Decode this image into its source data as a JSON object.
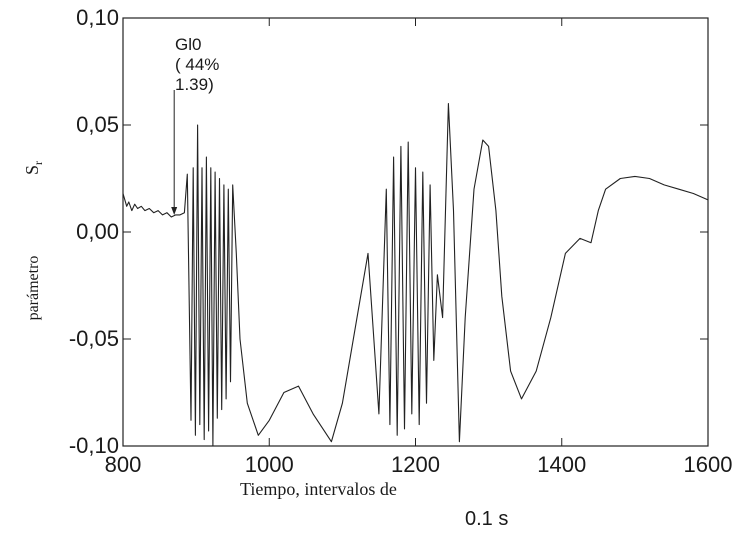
{
  "chart_data": {
    "type": "line",
    "title": "",
    "xlabel": "Tiempo, intervalos de",
    "xlabel_unit": "0.1 s",
    "ylabel": "parámetro",
    "ylabel_symbol": "S",
    "ylabel_symbol_subscript": "r",
    "xlim": [
      800,
      1600
    ],
    "ylim": [
      -0.1,
      0.1
    ],
    "x_ticks": [
      800,
      1000,
      1200,
      1400,
      1600
    ],
    "x_tick_labels": [
      "800",
      "1000",
      "1200",
      "1400",
      "1600"
    ],
    "y_ticks": [
      -0.1,
      -0.05,
      0.0,
      0.05,
      0.1
    ],
    "y_tick_labels": [
      "-0,10",
      "-0,05",
      "0,00",
      "0,05",
      "0,10"
    ],
    "grid": false,
    "annotation": {
      "lines": [
        "Gl0",
        "( 44%",
        "1.39)"
      ],
      "x": 870,
      "y": 0.007
    },
    "series": [
      {
        "color": "#222222",
        "x": [
          800,
          805,
          808,
          812,
          816,
          820,
          825,
          830,
          836,
          842,
          848,
          854,
          860,
          866,
          872,
          878,
          884,
          888,
          893,
          896,
          899,
          902,
          905,
          908,
          911,
          914,
          917,
          920,
          923,
          926,
          929,
          932,
          935,
          938,
          941,
          944,
          947,
          950,
          955,
          960,
          970,
          985,
          1000,
          1020,
          1040,
          1060,
          1085,
          1100,
          1120,
          1135,
          1145,
          1150,
          1160,
          1165,
          1170,
          1175,
          1180,
          1185,
          1190,
          1195,
          1200,
          1205,
          1210,
          1215,
          1220,
          1225,
          1230,
          1237,
          1245,
          1252,
          1260,
          1268,
          1280,
          1292,
          1300,
          1310,
          1318,
          1330,
          1345,
          1365,
          1385,
          1405,
          1425,
          1440,
          1450,
          1460,
          1480,
          1500,
          1520,
          1540,
          1560,
          1580,
          1600
        ],
        "y": [
          0.018,
          0.012,
          0.014,
          0.01,
          0.013,
          0.011,
          0.012,
          0.01,
          0.011,
          0.009,
          0.01,
          0.008,
          0.009,
          0.007,
          0.008,
          0.008,
          0.009,
          0.027,
          -0.088,
          0.03,
          -0.095,
          0.05,
          -0.09,
          0.03,
          -0.097,
          0.035,
          -0.093,
          0.03,
          -0.1,
          0.028,
          -0.087,
          0.025,
          -0.083,
          0.022,
          -0.078,
          0.02,
          -0.07,
          0.022,
          -0.01,
          -0.05,
          -0.08,
          -0.095,
          -0.088,
          -0.075,
          -0.072,
          -0.085,
          -0.098,
          -0.08,
          -0.04,
          -0.01,
          -0.06,
          -0.085,
          0.02,
          -0.09,
          0.035,
          -0.095,
          0.04,
          -0.092,
          0.042,
          -0.085,
          0.03,
          -0.09,
          0.028,
          -0.08,
          0.022,
          -0.06,
          -0.02,
          -0.04,
          0.06,
          0.01,
          -0.098,
          -0.04,
          0.02,
          0.043,
          0.04,
          0.01,
          -0.03,
          -0.065,
          -0.078,
          -0.065,
          -0.04,
          -0.01,
          -0.003,
          -0.005,
          0.01,
          0.02,
          0.025,
          0.026,
          0.025,
          0.022,
          0.02,
          0.018,
          0.015
        ]
      }
    ]
  }
}
